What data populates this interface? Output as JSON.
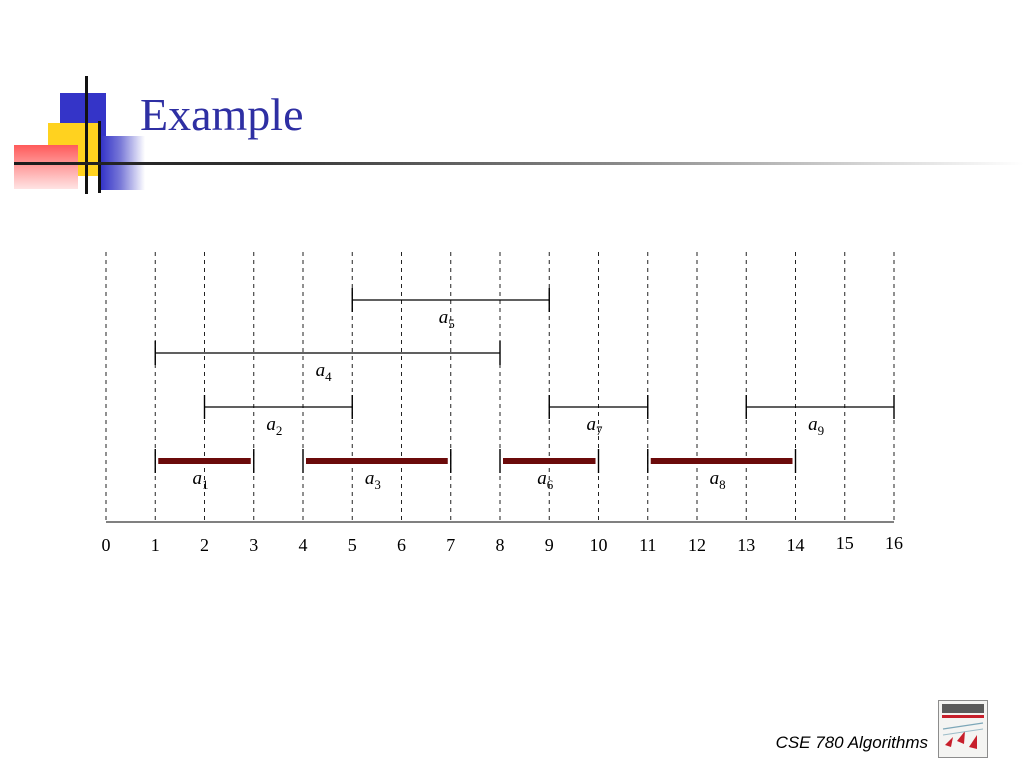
{
  "slide": {
    "title": "Example",
    "footer": "CSE 780 Algorithms"
  },
  "colors": {
    "title": "#2e2fa3",
    "selected_interval": "#6b0a0a",
    "interval": "#000000",
    "logo_blue": "#3434c8",
    "logo_yellow": "#ffd21f",
    "logo_red": "#ff6b6b"
  },
  "icons": {
    "logo": "decorative-squares-logo",
    "book": "algorithms-book-cover-icon"
  },
  "diagram": {
    "axis_ticks": [
      "0",
      "1",
      "2",
      "3",
      "4",
      "5",
      "6",
      "7",
      "8",
      "9",
      "10",
      "11",
      "12",
      "13",
      "14",
      "15",
      "16"
    ],
    "activities": [
      {
        "name": "a",
        "sub": "1",
        "start": 1,
        "finish": 3,
        "selected": true
      },
      {
        "name": "a",
        "sub": "2",
        "start": 2,
        "finish": 5,
        "selected": false
      },
      {
        "name": "a",
        "sub": "3",
        "start": 4,
        "finish": 7,
        "selected": true
      },
      {
        "name": "a",
        "sub": "4",
        "start": 1,
        "finish": 8,
        "selected": false
      },
      {
        "name": "a",
        "sub": "5",
        "start": 5,
        "finish": 9,
        "selected": false
      },
      {
        "name": "a",
        "sub": "6",
        "start": 8,
        "finish": 10,
        "selected": true
      },
      {
        "name": "a",
        "sub": "7",
        "start": 9,
        "finish": 11,
        "selected": false
      },
      {
        "name": "a",
        "sub": "8",
        "start": 11,
        "finish": 14,
        "selected": true
      },
      {
        "name": "a",
        "sub": "9",
        "start": 13,
        "finish": 16,
        "selected": false
      }
    ]
  }
}
